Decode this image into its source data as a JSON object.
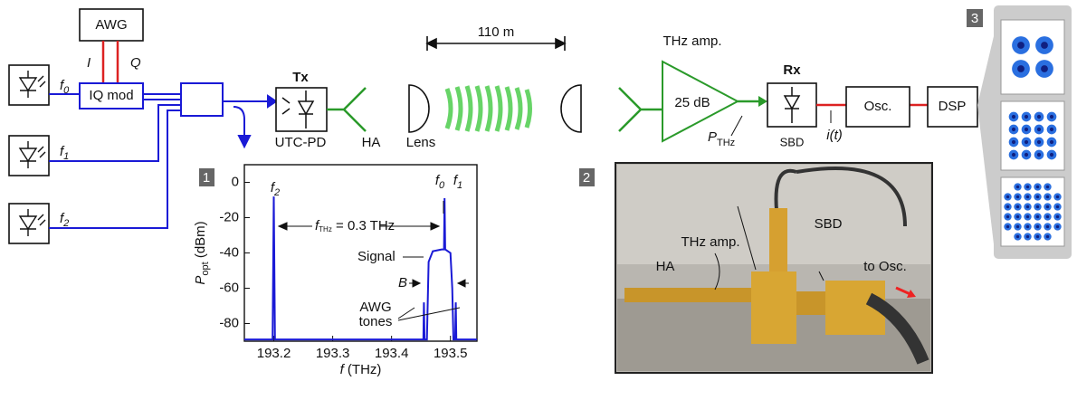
{
  "setup": {
    "awg": "AWG",
    "i": "I",
    "q": "Q",
    "iq_mod": "IQ mod",
    "lasers": [
      {
        "main": "f",
        "sub": "0"
      },
      {
        "main": "f",
        "sub": "1"
      },
      {
        "main": "f",
        "sub": "2"
      }
    ],
    "tx": "Tx",
    "utc_pd": "UTC-PD",
    "ha": "HA",
    "lens": "Lens",
    "distance": "110 m",
    "thz_amp": "THz amp.",
    "gain": "25 dB",
    "p_thz": {
      "main": "P",
      "sub": "THz"
    },
    "rx": "Rx",
    "sbd": "SBD",
    "current": "i(t)",
    "osc": "Osc.",
    "dsp": "DSP"
  },
  "panels": [
    "1",
    "2",
    "3"
  ],
  "photo": {
    "thz_amp": "THz amp.",
    "sbd": "SBD",
    "ha": "HA",
    "to_osc": "to Osc."
  },
  "chart_data": {
    "type": "line",
    "color": "#1a1ad6",
    "xlim": [
      193.15,
      193.545
    ],
    "xticks": [
      193.2,
      193.3,
      193.4,
      193.5
    ],
    "ylim": [
      -90,
      10
    ],
    "yticks": [
      0,
      -20,
      -40,
      -60,
      -80
    ],
    "x_label": {
      "main": "f",
      "rest": " (THz)"
    },
    "y_label": {
      "main": "P",
      "sub": "opt",
      "rest": " (dBm)"
    },
    "peak_labels": [
      {
        "main": "f",
        "sub": "2"
      },
      {
        "main": "f",
        "sub": "0"
      },
      {
        "main": "f",
        "sub": "1"
      }
    ],
    "spacing": {
      "main": "f",
      "sub": "THz",
      "rest": " = 0.3 THz"
    },
    "signal": "Signal",
    "bandwidth": "B",
    "awg_tones": [
      "AWG",
      "tones"
    ],
    "x": [
      193.15,
      193.198,
      193.2,
      193.202,
      193.454,
      193.455,
      193.456,
      193.46,
      193.463,
      193.47,
      193.485,
      193.489,
      193.49,
      193.491,
      193.5,
      193.503,
      193.505,
      193.508,
      193.509,
      193.51,
      193.545
    ],
    "values": [
      -89,
      -89,
      -8,
      -89,
      -89,
      -68,
      -89,
      -89,
      -45,
      -39,
      -38,
      -38,
      -9,
      -38,
      -40,
      -60,
      -89,
      -89,
      -68,
      -89,
      -89
    ]
  }
}
